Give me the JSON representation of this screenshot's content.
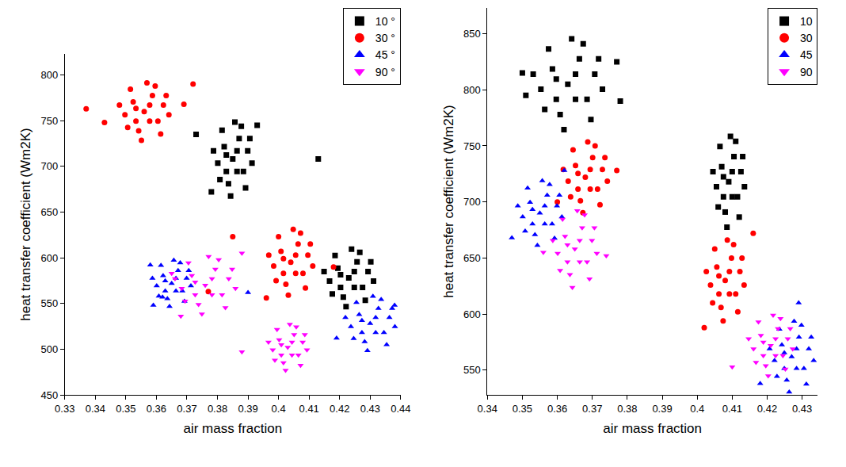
{
  "chart_data": [
    {
      "type": "scatter",
      "x_label": "air mass fraction",
      "y_label": "heat transfer coefficient (Wm2K)",
      "xlim": [
        0.33,
        0.44
      ],
      "xticks": [
        0.33,
        0.34,
        0.35,
        0.36,
        0.37,
        0.38,
        0.39,
        0.4,
        0.41,
        0.42,
        0.43,
        0.44
      ],
      "ylim": [
        450,
        823
      ],
      "yticks": [
        450,
        500,
        550,
        600,
        650,
        700,
        750,
        800
      ],
      "grid": false,
      "legend": "top right",
      "series": [
        {
          "name": "10 °",
          "color": "#000000",
          "marker": "square",
          "x": [
            0.385,
            0.3871,
            0.3822,
            0.3885,
            0.3836,
            0.3899,
            0.3801,
            0.3857,
            0.3843,
            0.3878,
            0.3815,
            0.3892,
            0.3808,
            0.3913,
            0.3787,
            0.3864,
            0.3829,
            0.3906,
            0.3829,
            0.3864,
            0.373,
            0.413,
            0.378,
            0.393,
            0.423,
            0.4257,
            0.4194,
            0.4275,
            0.4212,
            0.4293,
            0.4167,
            0.4239,
            0.4221,
            0.4266,
            0.4185,
            0.4284,
            0.4176,
            0.4311,
            0.4149,
            0.4248,
            0.4203,
            0.4302,
            0.4203,
            0.4248
          ],
          "values": [
            708,
            730.5,
            721.5,
            694.5,
            681,
            717,
            703.5,
            748.5,
            667.5,
            744,
            739.5,
            676.5,
            685.5,
            703.5,
            717,
            694.5,
            712.5,
            730.5,
            694.5,
            717,
            735,
            708,
            672,
            745,
            578,
            595.5,
            588.5,
            567.5,
            557,
            585,
            574.5,
            609.5,
            546.5,
            606,
            602.5,
            553.5,
            560.5,
            574.5,
            585,
            567.5,
            581.5,
            595.5,
            567.5,
            585
          ]
        },
        {
          "name": "30 °",
          "color": "#ff0000",
          "marker": "circle",
          "x": [
            0.356,
            0.3587,
            0.3524,
            0.3605,
            0.3542,
            0.3623,
            0.3497,
            0.3569,
            0.3551,
            0.3596,
            0.3515,
            0.3614,
            0.3506,
            0.3641,
            0.3479,
            0.3578,
            0.3533,
            0.3632,
            0.3533,
            0.3578,
            0.337,
            0.372,
            0.369,
            0.343,
            0.404,
            0.4064,
            0.4008,
            0.408,
            0.4024,
            0.4096,
            0.3984,
            0.4048,
            0.4032,
            0.4072,
            0.4,
            0.4088,
            0.3992,
            0.4112,
            0.3968,
            0.4056,
            0.4016,
            0.4104,
            0.4016,
            0.4056,
            0.377,
            0.385,
            0.418,
            0.396
          ],
          "values": [
            760,
            777.5,
            770.5,
            749.5,
            739,
            767,
            756.5,
            791.5,
            728.5,
            788,
            784.5,
            735.5,
            742.5,
            756.5,
            767,
            749.5,
            763.5,
            777.5,
            749.5,
            767,
            763,
            790,
            768,
            748,
            595,
            615,
            607,
            583,
            571,
            603,
            591,
            631,
            559,
            627,
            623,
            567,
            575,
            591,
            603,
            583,
            599,
            615,
            583,
            603,
            563,
            623,
            590,
            556
          ]
        },
        {
          "name": "45 °",
          "color": "#0000ff",
          "marker": "triangle-up",
          "x": [
            0.365,
            0.3671,
            0.3622,
            0.3685,
            0.3636,
            0.3699,
            0.3601,
            0.3657,
            0.3643,
            0.3678,
            0.3615,
            0.3692,
            0.3608,
            0.3713,
            0.3587,
            0.3664,
            0.3629,
            0.3706,
            0.3629,
            0.3664,
            0.358,
            0.359,
            0.362,
            0.43,
            0.4327,
            0.4264,
            0.4345,
            0.4282,
            0.4363,
            0.4237,
            0.4309,
            0.4291,
            0.4336,
            0.4255,
            0.4354,
            0.4246,
            0.4381,
            0.4219,
            0.4318,
            0.4273,
            0.4372,
            0.4273,
            0.4318,
            0.39,
            0.419,
            0.438
          ],
          "values": [
            572,
            586,
            580.4,
            563.6,
            555.2,
            577.6,
            569.2,
            597.2,
            546.8,
            594.4,
            591.6,
            552.4,
            558,
            569.2,
            577.6,
            563.6,
            574.8,
            586,
            563.6,
            577.6,
            592,
            548,
            557,
            528,
            544.5,
            537.9,
            518.1,
            508.2,
            534.6,
            524.7,
            557.7,
            498.3,
            554.4,
            551.1,
            504.9,
            511.5,
            524.7,
            534.6,
            518.1,
            531.3,
            544.5,
            518.1,
            534.6,
            562,
            512,
            548
          ]
        },
        {
          "name": "90 °",
          "color": "#ff00ff",
          "marker": "triangle-down",
          "x": [
            0.376,
            0.3793,
            0.3716,
            0.3815,
            0.3738,
            0.3837,
            0.3683,
            0.3771,
            0.3749,
            0.3804,
            0.3705,
            0.3826,
            0.3694,
            0.3859,
            0.3661,
            0.3782,
            0.3727,
            0.3848,
            0.3727,
            0.3782,
            0.368,
            0.388,
            0.365,
            0.403,
            0.4051,
            0.4002,
            0.4065,
            0.4016,
            0.4079,
            0.3981,
            0.4037,
            0.4023,
            0.4058,
            0.3995,
            0.4072,
            0.3988,
            0.4093,
            0.3967,
            0.4044,
            0.4009,
            0.4086,
            0.4009,
            0.4044,
            0.388
          ],
          "values": [
            570,
            587.5,
            580.5,
            559.5,
            549,
            577,
            566.5,
            601.5,
            538.5,
            598,
            594.5,
            545.5,
            552.5,
            566.5,
            577,
            559.5,
            573.5,
            587.5,
            559.5,
            577,
            536,
            605,
            583,
            502,
            516,
            510.4,
            493.6,
            485.2,
            507.6,
            499.2,
            527.2,
            476.8,
            524.4,
            521.6,
            482.4,
            488,
            499.2,
            507.6,
            493.6,
            504.8,
            516,
            493.6,
            507.6,
            497
          ]
        }
      ]
    },
    {
      "type": "scatter",
      "x_label": "air mass fraction",
      "y_label": "heat transfer coefficient (Wm2K)",
      "xlim": [
        0.34,
        0.4344
      ],
      "xticks": [
        0.34,
        0.35,
        0.36,
        0.37,
        0.38,
        0.39,
        0.4,
        0.41,
        0.42,
        0.43
      ],
      "ylim": [
        528,
        873
      ],
      "yticks": [
        550,
        600,
        650,
        700,
        750,
        800,
        850
      ],
      "grid": false,
      "legend": "top right",
      "series": [
        {
          "name": "10",
          "color": "#000000",
          "marker": "square",
          "x": [
            0.363,
            0.3663,
            0.3586,
            0.3685,
            0.3608,
            0.3707,
            0.3553,
            0.3641,
            0.3619,
            0.3674,
            0.3575,
            0.3696,
            0.3564,
            0.3729,
            0.3531,
            0.3652,
            0.3597,
            0.3718,
            0.3597,
            0.3652,
            0.35,
            0.377,
            0.378,
            0.351,
            0.409,
            0.4105,
            0.407,
            0.4115,
            0.408,
            0.4125,
            0.4055,
            0.4095,
            0.4085,
            0.411,
            0.4065,
            0.412,
            0.406,
            0.4135,
            0.4045,
            0.41,
            0.4075,
            0.413,
            0.4075,
            0.41
          ],
          "values": [
            805,
            827.5,
            818.5,
            791.5,
            778,
            814,
            800.5,
            845.5,
            764.5,
            841,
            836.5,
            773.5,
            782.5,
            800.5,
            814,
            791.5,
            809.5,
            827.5,
            791.5,
            814,
            815,
            825,
            790,
            795,
            718,
            740.5,
            731.5,
            704.5,
            691,
            727,
            713.5,
            758.5,
            677.5,
            754,
            749.5,
            686.5,
            695.5,
            713.5,
            727,
            704.5,
            722.5,
            740.5,
            704.5,
            727
          ]
        },
        {
          "name": "30",
          "color": "#ff0000",
          "marker": "circle",
          "x": [
            0.368,
            0.3701,
            0.3652,
            0.3715,
            0.3666,
            0.3729,
            0.3631,
            0.3687,
            0.3673,
            0.3708,
            0.3645,
            0.3722,
            0.3638,
            0.3743,
            0.3617,
            0.3694,
            0.3659,
            0.3736,
            0.3659,
            0.3694,
            0.377,
            0.36,
            0.408,
            0.4098,
            0.4056,
            0.411,
            0.4068,
            0.4122,
            0.4038,
            0.4086,
            0.4074,
            0.4104,
            0.405,
            0.4116,
            0.4044,
            0.4134,
            0.4026,
            0.4092,
            0.4062,
            0.4128,
            0.4062,
            0.4092,
            0.402,
            0.416
          ],
          "values": [
            722,
            739.5,
            732.5,
            711.5,
            701,
            729,
            718.5,
            753.5,
            690.5,
            750,
            746.5,
            697.5,
            704.5,
            718.5,
            729,
            711.5,
            725.5,
            739.5,
            711.5,
            729,
            728,
            700,
            630,
            650,
            642,
            618,
            606,
            638,
            626,
            666,
            594,
            662,
            658,
            602,
            610,
            626,
            638,
            618,
            634,
            650,
            618,
            638,
            588,
            672
          ]
        },
        {
          "name": "45",
          "color": "#0000ff",
          "marker": "triangle-up",
          "x": [
            0.355,
            0.3571,
            0.3522,
            0.3585,
            0.3536,
            0.3599,
            0.3501,
            0.3557,
            0.3543,
            0.3578,
            0.3515,
            0.3592,
            0.3508,
            0.3613,
            0.3487,
            0.3564,
            0.3529,
            0.3606,
            0.3529,
            0.3564,
            0.347,
            0.362,
            0.427,
            0.4291,
            0.4242,
            0.4305,
            0.4256,
            0.4319,
            0.4221,
            0.4277,
            0.4263,
            0.4298,
            0.4235,
            0.4312,
            0.4228,
            0.4333,
            0.4207,
            0.4284,
            0.4249,
            0.4326,
            0.4249,
            0.4284,
            0.429,
            0.418
          ],
          "values": [
            690,
            706,
            699.6,
            680.4,
            670.8,
            696.4,
            686.8,
            718.8,
            661.2,
            715.6,
            712.4,
            667.6,
            674,
            686.8,
            696.4,
            680.4,
            693.2,
            706,
            680.4,
            696.4,
            668,
            728,
            562,
            579.5,
            572.5,
            551.5,
            541,
            569,
            558.5,
            593.5,
            530.5,
            590,
            586.5,
            537.5,
            544.5,
            558.5,
            569,
            551.5,
            565.5,
            579.5,
            551.5,
            569,
            610,
            538
          ]
        },
        {
          "name": "90",
          "color": "#ff00ff",
          "marker": "triangle-down",
          "x": [
            0.365,
            0.3671,
            0.3622,
            0.3685,
            0.3636,
            0.3699,
            0.3601,
            0.3657,
            0.3643,
            0.3678,
            0.3615,
            0.3692,
            0.3608,
            0.3713,
            0.3587,
            0.3664,
            0.3629,
            0.3706,
            0.3629,
            0.3664,
            0.356,
            0.374,
            0.421,
            0.4231,
            0.4182,
            0.4245,
            0.4196,
            0.4259,
            0.4161,
            0.4217,
            0.4203,
            0.4238,
            0.4175,
            0.4252,
            0.4168,
            0.4273,
            0.4147,
            0.4224,
            0.4189,
            0.4266,
            0.4189,
            0.4224,
            0.41
          ],
          "values": [
            658,
            677,
            669.4,
            646.6,
            635.2,
            665.6,
            654.2,
            692.2,
            623.8,
            688.4,
            684.6,
            631.4,
            639,
            654.2,
            665.6,
            646.6,
            661.8,
            677,
            646.6,
            665.6,
            655,
            652,
            572,
            587,
            581,
            563,
            554,
            578,
            569,
            599,
            545,
            596,
            593,
            551,
            557,
            569,
            578,
            563,
            575,
            587,
            563,
            578,
            553
          ]
        }
      ]
    }
  ]
}
